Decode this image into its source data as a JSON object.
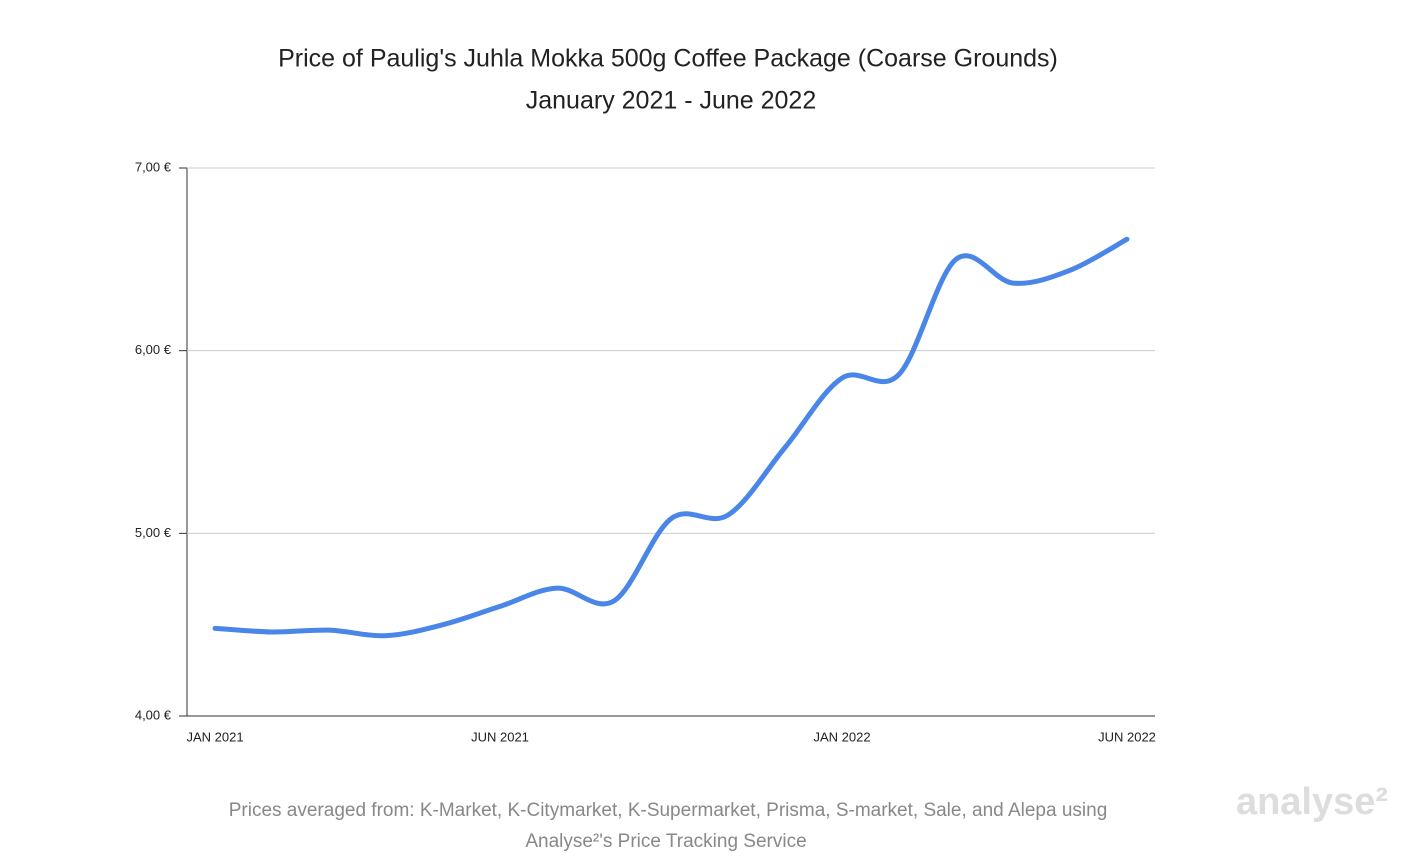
{
  "chart_data": {
    "type": "line",
    "title": "Price of Paulig's Juhla Mokka 500g Coffee Package (Coarse Grounds)",
    "subtitle": "January 2021 - June 2022",
    "categories": [
      "JAN 2021",
      null,
      null,
      null,
      null,
      "JUN 2021",
      null,
      null,
      null,
      null,
      null,
      "JAN 2022",
      null,
      null,
      null,
      null,
      "JUN 2022"
    ],
    "series": [
      {
        "color": "#4a86e8",
        "values": [
          4.48,
          4.46,
          4.47,
          4.44,
          4.5,
          4.6,
          4.7,
          4.63,
          5.08,
          5.1,
          5.47,
          5.85,
          5.87,
          6.5,
          6.37,
          6.44,
          6.61
        ]
      }
    ],
    "ylim": [
      4,
      7
    ],
    "yticks": [
      {
        "value": 4,
        "label": "4,00 €"
      },
      {
        "value": 5,
        "label": "5,00 €"
      },
      {
        "value": 6,
        "label": "6,00 €"
      },
      {
        "value": 7,
        "label": "7,00 €"
      }
    ],
    "grid": true,
    "source_lines": [
      "Prices averaged from: K-Market, K-Citymarket, K-Supermarket, Prisma, S-market, Sale, and Alepa using",
      "Analyse²'s Price Tracking Service"
    ],
    "watermark": "analyse²"
  }
}
